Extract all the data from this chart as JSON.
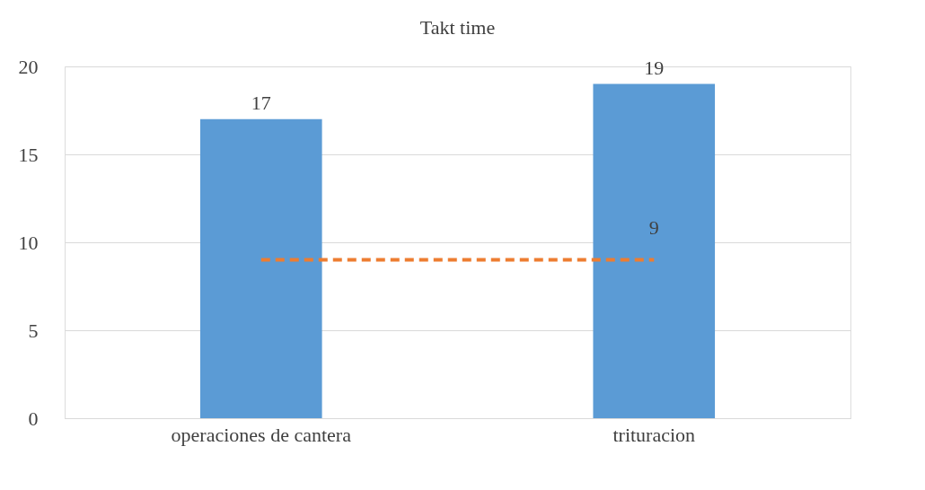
{
  "chart_data": {
    "type": "bar",
    "title": "Takt time",
    "categories": [
      "operaciones de cantera",
      "trituracion"
    ],
    "series": [
      {
        "color": "#5b9bd5",
        "values": [
          17,
          19
        ],
        "value_labels": [
          "17",
          "19"
        ]
      },
      {
        "type": "line",
        "color": "#ed7d31",
        "values": [
          9,
          9
        ],
        "value_labels": [
          null,
          "9"
        ],
        "line_style": "dashed",
        "marker": "none"
      }
    ],
    "ylim": [
      0,
      20
    ],
    "yticks": [
      0,
      5,
      10,
      15,
      20
    ],
    "grid": "y"
  }
}
